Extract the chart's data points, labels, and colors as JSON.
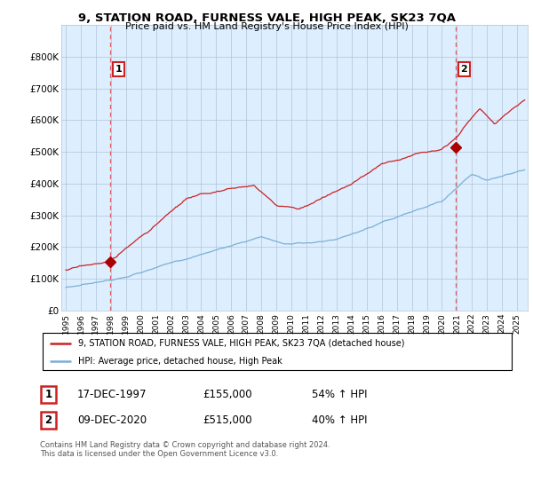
{
  "title": "9, STATION ROAD, FURNESS VALE, HIGH PEAK, SK23 7QA",
  "subtitle": "Price paid vs. HM Land Registry's House Price Index (HPI)",
  "legend_line1": "9, STATION ROAD, FURNESS VALE, HIGH PEAK, SK23 7QA (detached house)",
  "legend_line2": "HPI: Average price, detached house, High Peak",
  "annotation1_date": "17-DEC-1997",
  "annotation1_price": "£155,000",
  "annotation1_hpi": "54% ↑ HPI",
  "annotation2_date": "09-DEC-2020",
  "annotation2_price": "£515,000",
  "annotation2_hpi": "40% ↑ HPI",
  "footnote": "Contains HM Land Registry data © Crown copyright and database right 2024.\nThis data is licensed under the Open Government Licence v3.0.",
  "hpi_color": "#7bafd4",
  "price_color": "#cc2222",
  "marker_color": "#aa0000",
  "dashed_color": "#dd4444",
  "plot_bg_color": "#ddeeff",
  "ylim": [
    0,
    900000
  ],
  "yticks": [
    0,
    100000,
    200000,
    300000,
    400000,
    500000,
    600000,
    700000,
    800000
  ],
  "ytick_labels": [
    "£0",
    "£100K",
    "£200K",
    "£300K",
    "£400K",
    "£500K",
    "£600K",
    "£700K",
    "£800K"
  ],
  "background_color": "#ffffff",
  "grid_color": "#b0c4d8",
  "sale1_x": 1997.96,
  "sale1_y": 155000,
  "sale2_x": 2020.94,
  "sale2_y": 515000,
  "xlim_left": 1994.7,
  "xlim_right": 2025.7
}
